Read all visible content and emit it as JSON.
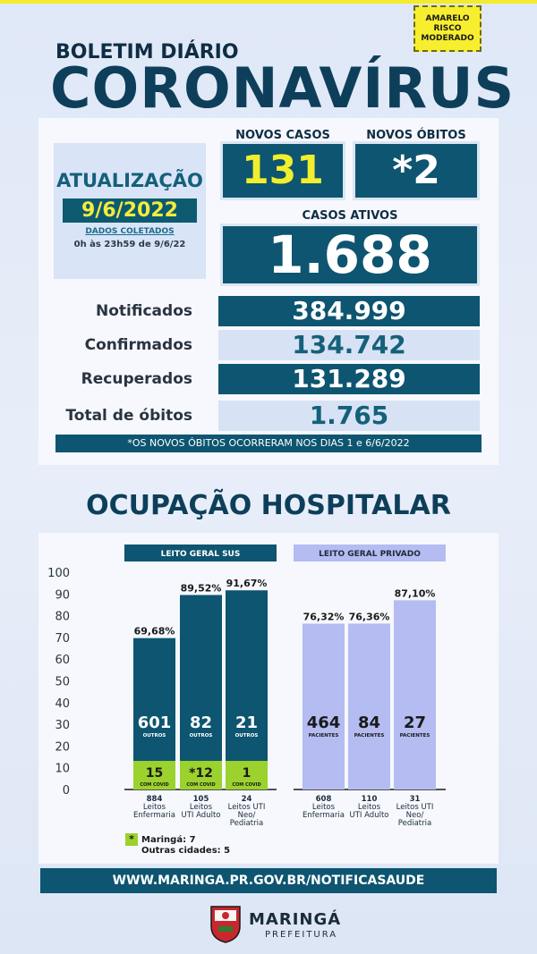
{
  "risk": {
    "line1": "AMARELO",
    "line2": "RISCO",
    "line3": "MODERADO"
  },
  "header": {
    "kicker": "BOLETIM DIÁRIO",
    "title": "CORONAVÍRUS"
  },
  "update": {
    "label": "ATUALIZAÇÃO",
    "date": "9/6/2022",
    "collected_label": "DADOS COLETADOS",
    "collected_range": "0h às 23h59 de 9/6/22"
  },
  "new_cases": {
    "label": "NOVOS CASOS",
    "value": "131"
  },
  "new_deaths": {
    "label": "NOVOS ÓBITOS",
    "value": "*2"
  },
  "active_cases": {
    "label": "CASOS ATIVOS",
    "value": "1.688"
  },
  "totals": [
    {
      "label": "Notificados",
      "value": "384.999"
    },
    {
      "label": "Confirmados",
      "value": "134.742"
    },
    {
      "label": "Recuperados",
      "value": "131.289"
    },
    {
      "label": "Total de óbitos",
      "value": "1.765"
    }
  ],
  "note": "*OS NOVOS  ÓBITOS OCORRERAM NOS DIAS 1 e 6/6/2022",
  "occupancy_title": "OCUPAÇÃO HOSPITALAR",
  "chart_data": {
    "type": "bar",
    "ylim": [
      0,
      100
    ],
    "yticks": [
      "0",
      "10",
      "20",
      "30",
      "40",
      "50",
      "60",
      "70",
      "80",
      "90",
      "100"
    ],
    "groups": [
      {
        "name": "LEITO GERAL SUS",
        "color": "#0d5570",
        "bars": [
          {
            "pct": 69.68,
            "pct_label": "69,68%",
            "main": "601",
            "main_sub": "OUTROS",
            "covid": "15",
            "covid_sub": "COM COVID",
            "cat": [
              "884",
              "Leitos",
              "Enfermaria"
            ]
          },
          {
            "pct": 89.52,
            "pct_label": "89,52%",
            "main": "82",
            "main_sub": "OUTROS",
            "covid": "*12",
            "covid_sub": "COM COVID",
            "cat": [
              "105",
              "Leitos",
              "UTI Adulto"
            ]
          },
          {
            "pct": 91.67,
            "pct_label": "91,67%",
            "main": "21",
            "main_sub": "OUTROS",
            "covid": "1",
            "covid_sub": "COM COVID",
            "cat": [
              "24",
              "Leitos UTI",
              "Neo/",
              "Pediatria"
            ]
          }
        ]
      },
      {
        "name": "LEITO GERAL PRIVADO",
        "color": "#b4bcf2",
        "bars": [
          {
            "pct": 76.32,
            "pct_label": "76,32%",
            "main": "464",
            "main_sub": "PACIENTES",
            "cat": [
              "608",
              "Leitos",
              "Enfermaria"
            ]
          },
          {
            "pct": 76.36,
            "pct_label": "76,36%",
            "main": "84",
            "main_sub": "PACIENTES",
            "cat": [
              "110",
              "Leitos",
              "UTI Adulto"
            ]
          },
          {
            "pct": 87.1,
            "pct_label": "87,10%",
            "main": "27",
            "main_sub": "PACIENTES",
            "cat": [
              "31",
              "Leitos UTI",
              "Neo/",
              "Pediatria"
            ]
          }
        ]
      }
    ],
    "covid_color": "#9bd22d"
  },
  "legend": {
    "marker": "*",
    "line1": "Maringá: 7",
    "line2": "Outras cidades: 5"
  },
  "url": "WWW.MARINGA.PR.GOV.BR/NOTIFICASAUDE",
  "footer": {
    "city": "MARINGÁ",
    "sub": "PREFEITURA"
  }
}
